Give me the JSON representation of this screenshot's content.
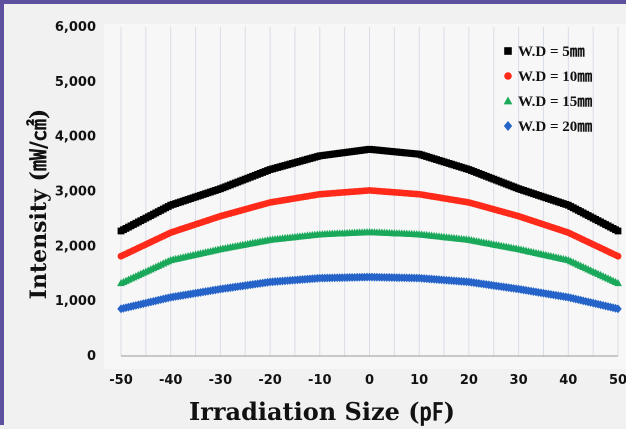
{
  "chart_data": {
    "type": "scatter",
    "xlabel": "Irradiation Size (㎊)",
    "ylabel": "Intensity (㎽/㎠)",
    "xlim": [
      -50,
      50
    ],
    "ylim": [
      0,
      6000
    ],
    "x_ticks": [
      "-50",
      "-40",
      "-30",
      "-20",
      "-10",
      "0",
      "10",
      "20",
      "30",
      "40",
      "50"
    ],
    "y_ticks": [
      "0",
      "1,000",
      "2,000",
      "3,000",
      "4,000",
      "5,000",
      "6,000"
    ],
    "grid": "vertical",
    "legend_position": "top-right",
    "x": [
      -50,
      -40,
      -30,
      -20,
      -10,
      0,
      10,
      20,
      30,
      40,
      50
    ],
    "series": [
      {
        "name": "W.D =   5㎜",
        "color": "#000000",
        "marker": "square",
        "values": [
          2280,
          2750,
          3050,
          3400,
          3650,
          3770,
          3680,
          3400,
          3050,
          2750,
          2280
        ]
      },
      {
        "name": "W.D = 10㎜",
        "color": "#ff2a1a",
        "marker": "circle",
        "values": [
          1820,
          2250,
          2550,
          2800,
          2950,
          3020,
          2950,
          2800,
          2550,
          2250,
          1820
        ]
      },
      {
        "name": "W.D = 15㎜",
        "color": "#1aa85a",
        "marker": "triangle",
        "values": [
          1330,
          1750,
          1950,
          2120,
          2220,
          2260,
          2220,
          2120,
          1950,
          1750,
          1330
        ]
      },
      {
        "name": "W.D = 20㎜",
        "color": "#2563c9",
        "marker": "diamond",
        "values": [
          860,
          1070,
          1220,
          1350,
          1420,
          1440,
          1420,
          1350,
          1220,
          1070,
          860
        ]
      }
    ]
  }
}
